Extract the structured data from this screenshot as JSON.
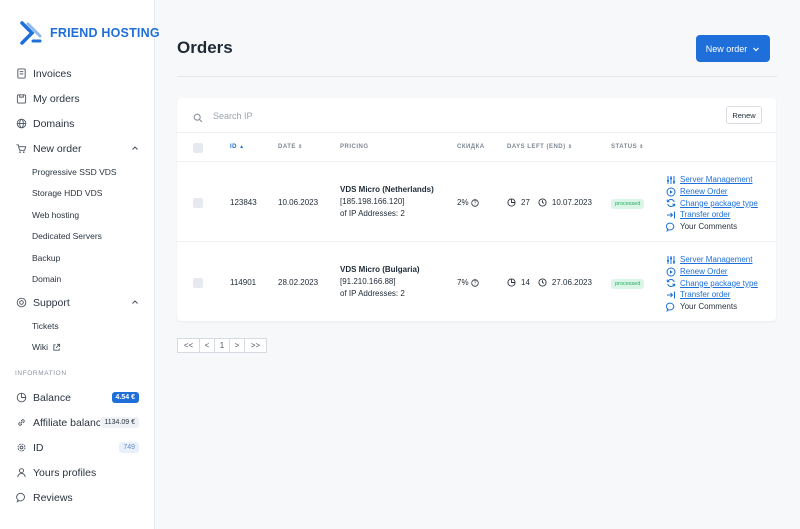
{
  "brand": {
    "name": "FRIEND HOSTING"
  },
  "sidebar": {
    "items": [
      {
        "label": "Invoices",
        "icon": "invoice-icon"
      },
      {
        "label": "My orders",
        "icon": "orders-icon"
      },
      {
        "label": "Domains",
        "icon": "globe-icon"
      },
      {
        "label": "New order",
        "icon": "cart-icon",
        "expanded": true
      }
    ],
    "new_order_sub": [
      "Progressive SSD VDS",
      "Storage HDD VDS",
      "Web hosting",
      "Dedicated Servers",
      "Backup",
      "Domain"
    ],
    "support": {
      "label": "Support",
      "icon": "support-icon"
    },
    "support_sub": [
      "Tickets",
      "Wiki"
    ],
    "info_label": "INFORMATION",
    "info_items": [
      {
        "label": "Balance",
        "badge": "4.54 €"
      },
      {
        "label": "Affiliate balance",
        "badge": "1134.09 €"
      },
      {
        "label": "ID",
        "badge": "749"
      },
      {
        "label": "Yours profiles"
      },
      {
        "label": "Reviews"
      }
    ]
  },
  "header": {
    "title": "Orders",
    "new_order_label": "New order"
  },
  "toolbar": {
    "search_placeholder": "Search IP",
    "renew_label": "Renew"
  },
  "table": {
    "columns": [
      "ID",
      "DATE",
      "PRICING",
      "СКИДКА",
      "DAYS LEFT (END)",
      "STATUS"
    ],
    "rows": [
      {
        "id": "123843",
        "date": "10.06.2023",
        "plan": "VDS Micro (Netherlands)",
        "ip": "[185.198.166.120]",
        "ip_count": "of IP Addresses: 2",
        "discount": "2%",
        "days_left": "27",
        "end_date": "10.07.2023",
        "status": "processed"
      },
      {
        "id": "114901",
        "date": "28.02.2023",
        "plan": "VDS Micro (Bulgaria)",
        "ip": "[91.210.166.88]",
        "ip_count": "of IP Addresses: 2",
        "discount": "7%",
        "days_left": "14",
        "end_date": "27.06.2023",
        "status": "processed"
      }
    ],
    "actions": [
      "Server Management",
      "Renew Order",
      "Change package type",
      "Transfer order",
      "Your Comments"
    ]
  },
  "pagination": {
    "first": "<<",
    "prev": "<",
    "current": "1",
    "next": ">",
    "last": ">>"
  },
  "colors": {
    "accent": "#1e6fd9",
    "status_bg": "#d9f5e5",
    "status_text": "#2aa866"
  }
}
